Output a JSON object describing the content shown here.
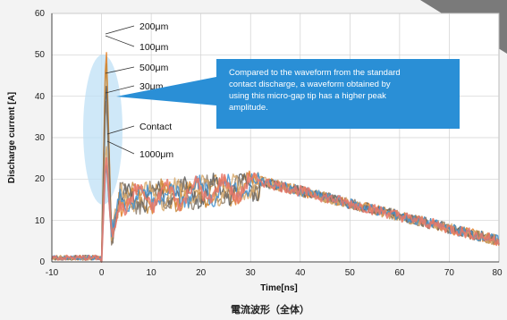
{
  "chart_data": {
    "type": "line",
    "xlabel": "Time[ns]",
    "ylabel": "Discharge current [A]",
    "xlim": [
      -10,
      80
    ],
    "ylim": [
      0,
      60
    ],
    "x_ticks": [
      "-10",
      "0",
      "10",
      "20",
      "30",
      "40",
      "50",
      "60",
      "70",
      "80"
    ],
    "y_ticks": [
      "0",
      "10",
      "20",
      "30",
      "40",
      "50",
      "60"
    ],
    "grid": true,
    "caption": "電流波形（全体）",
    "annotations": [
      "200μm",
      "100μm",
      "500μm",
      "30μm",
      "Contact",
      "1000μm"
    ],
    "callout": "Compared to the waveform from the standard contact discharge, a waveform obtained by using this micro-gap tip has a higher peak amplitude.",
    "series": [
      {
        "peak": 55,
        "color": "#e07b20"
      },
      {
        "peak": 52,
        "color": "#c58a3a"
      },
      {
        "peak": 46,
        "color": "#5a5a5a"
      },
      {
        "peak": 42,
        "color": "#8a7a6a"
      },
      {
        "peak": 30,
        "color": "#d7a86a"
      },
      {
        "peak": 25,
        "color": "#3f8fcf"
      },
      {
        "peak": 27,
        "color": "#e8786a"
      }
    ]
  },
  "colors": {
    "background": "#f3f3f3",
    "callout": "#2a8fd6",
    "highlight_ellipse": "#bfe0f5",
    "grid": "#d0d0d0"
  }
}
